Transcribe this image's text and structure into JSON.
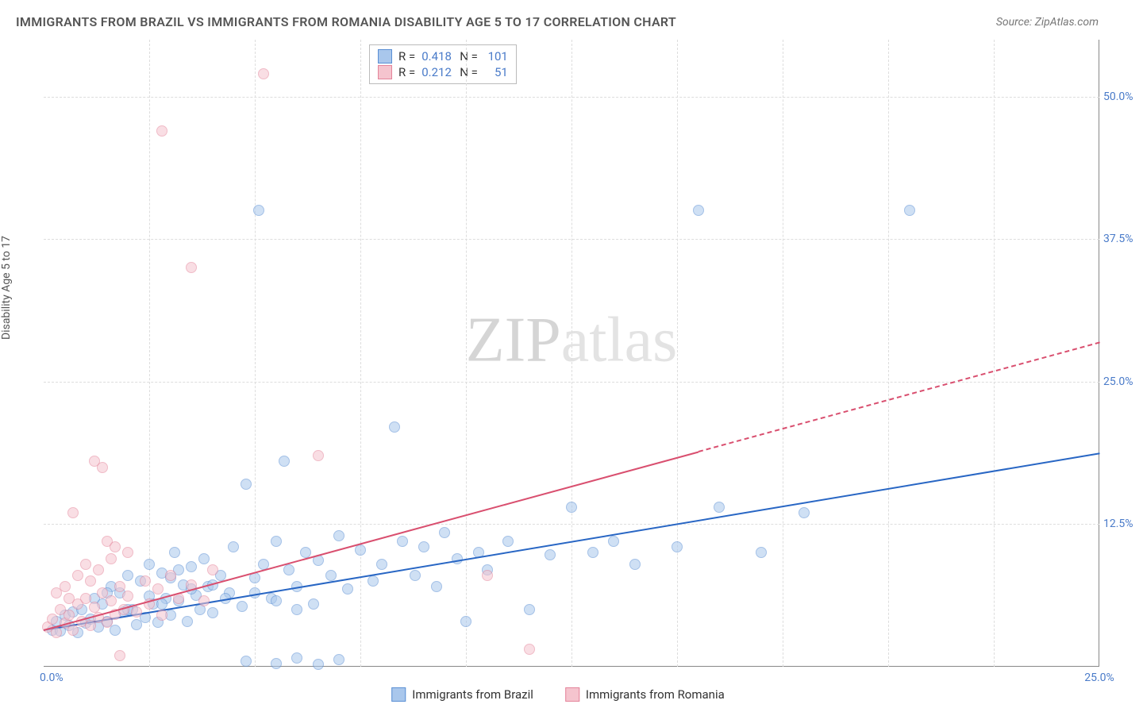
{
  "title": "IMMIGRANTS FROM BRAZIL VS IMMIGRANTS FROM ROMANIA DISABILITY AGE 5 TO 17 CORRELATION CHART",
  "source": "Source: ZipAtlas.com",
  "y_axis_label": "Disability Age 5 to 17",
  "watermark": {
    "part1": "ZIP",
    "part2": "atlas"
  },
  "chart": {
    "type": "scatter",
    "xlim": [
      0,
      25
    ],
    "ylim": [
      0,
      55
    ],
    "x_ticks": [
      {
        "v": 0,
        "l": "0.0%"
      },
      {
        "v": 25,
        "l": "25.0%"
      }
    ],
    "y_ticks": [
      {
        "v": 12.5,
        "l": "12.5%"
      },
      {
        "v": 25,
        "l": "25.0%"
      },
      {
        "v": 37.5,
        "l": "37.5%"
      },
      {
        "v": 50,
        "l": "50.0%"
      }
    ],
    "grid_color": "#dddddd",
    "axis_color": "#888888",
    "background_color": "#ffffff",
    "tick_color": "#4a7bc9",
    "series": [
      {
        "name": "Immigrants from Brazil",
        "color_fill": "#a9c7ec",
        "color_stroke": "#5a8fd4",
        "trend_color": "#2866c4",
        "r": 0.418,
        "n": 101,
        "trend": {
          "x0": 0,
          "y0": 3.3,
          "x1": 25,
          "y1": 18.8,
          "x_data_end": 25
        },
        "points": [
          [
            0.2,
            3.2
          ],
          [
            0.3,
            4.0
          ],
          [
            0.4,
            3.1
          ],
          [
            0.5,
            4.5
          ],
          [
            0.6,
            3.6
          ],
          [
            0.7,
            4.8
          ],
          [
            0.8,
            3.0
          ],
          [
            0.9,
            5.0
          ],
          [
            1.0,
            3.8
          ],
          [
            1.1,
            4.2
          ],
          [
            1.2,
            6.0
          ],
          [
            1.3,
            3.5
          ],
          [
            1.4,
            5.5
          ],
          [
            1.5,
            4.0
          ],
          [
            1.6,
            7.0
          ],
          [
            1.7,
            3.2
          ],
          [
            1.8,
            6.5
          ],
          [
            1.9,
            4.8
          ],
          [
            2.0,
            8.0
          ],
          [
            2.1,
            5.0
          ],
          [
            2.2,
            3.7
          ],
          [
            2.3,
            7.5
          ],
          [
            2.4,
            4.3
          ],
          [
            2.5,
            9.0
          ],
          [
            2.6,
            5.5
          ],
          [
            2.7,
            3.9
          ],
          [
            2.8,
            8.2
          ],
          [
            2.9,
            6.0
          ],
          [
            3.0,
            4.5
          ],
          [
            3.1,
            10.0
          ],
          [
            3.2,
            5.8
          ],
          [
            3.3,
            7.2
          ],
          [
            3.4,
            4.0
          ],
          [
            3.5,
            8.8
          ],
          [
            3.6,
            6.3
          ],
          [
            3.7,
            5.0
          ],
          [
            3.8,
            9.5
          ],
          [
            3.9,
            7.0
          ],
          [
            4.0,
            4.7
          ],
          [
            4.2,
            8.0
          ],
          [
            4.4,
            6.5
          ],
          [
            4.5,
            10.5
          ],
          [
            4.7,
            5.3
          ],
          [
            4.8,
            16.0
          ],
          [
            5.0,
            7.8
          ],
          [
            5.1,
            40.0
          ],
          [
            5.2,
            9.0
          ],
          [
            5.4,
            6.0
          ],
          [
            5.5,
            11.0
          ],
          [
            5.7,
            18.0
          ],
          [
            5.8,
            8.5
          ],
          [
            6.0,
            7.0
          ],
          [
            6.2,
            10.0
          ],
          [
            6.4,
            5.5
          ],
          [
            6.5,
            9.3
          ],
          [
            6.8,
            8.0
          ],
          [
            7.0,
            11.5
          ],
          [
            7.2,
            6.8
          ],
          [
            7.5,
            10.2
          ],
          [
            7.8,
            7.5
          ],
          [
            8.0,
            9.0
          ],
          [
            8.3,
            21.0
          ],
          [
            8.5,
            11.0
          ],
          [
            8.8,
            8.0
          ],
          [
            9.0,
            10.5
          ],
          [
            9.3,
            7.0
          ],
          [
            9.5,
            11.8
          ],
          [
            9.8,
            9.5
          ],
          [
            10.0,
            4.0
          ],
          [
            10.3,
            10.0
          ],
          [
            10.5,
            8.5
          ],
          [
            11.0,
            11.0
          ],
          [
            11.5,
            5.0
          ],
          [
            12.0,
            9.8
          ],
          [
            12.5,
            14.0
          ],
          [
            13.0,
            10.0
          ],
          [
            13.5,
            11.0
          ],
          [
            14.0,
            9.0
          ],
          [
            15.0,
            10.5
          ],
          [
            15.5,
            40.0
          ],
          [
            16.0,
            14.0
          ],
          [
            17.0,
            10.0
          ],
          [
            18.0,
            13.5
          ],
          [
            20.5,
            40.0
          ],
          [
            4.8,
            0.5
          ],
          [
            5.5,
            0.3
          ],
          [
            6.0,
            0.8
          ],
          [
            6.5,
            0.2
          ],
          [
            7.0,
            0.6
          ],
          [
            3.0,
            7.8
          ],
          [
            3.2,
            8.5
          ],
          [
            3.5,
            6.8
          ],
          [
            4.0,
            7.2
          ],
          [
            4.3,
            6.0
          ],
          [
            5.0,
            6.5
          ],
          [
            5.5,
            5.8
          ],
          [
            6.0,
            5.0
          ],
          [
            2.5,
            6.2
          ],
          [
            2.8,
            5.5
          ],
          [
            2.0,
            5.0
          ],
          [
            1.5,
            6.5
          ]
        ]
      },
      {
        "name": "Immigrants from Romania",
        "color_fill": "#f5c4ce",
        "color_stroke": "#e4849a",
        "trend_color": "#d94f6f",
        "r": 0.212,
        "n": 51,
        "trend": {
          "x0": 0,
          "y0": 3.3,
          "x1": 25,
          "y1": 28.5,
          "x_data_end": 15.5
        },
        "points": [
          [
            0.1,
            3.5
          ],
          [
            0.2,
            4.2
          ],
          [
            0.3,
            3.0
          ],
          [
            0.4,
            5.0
          ],
          [
            0.5,
            3.8
          ],
          [
            0.6,
            4.5
          ],
          [
            0.7,
            3.2
          ],
          [
            0.8,
            5.5
          ],
          [
            0.9,
            4.0
          ],
          [
            1.0,
            6.0
          ],
          [
            1.1,
            3.6
          ],
          [
            1.2,
            5.2
          ],
          [
            1.3,
            4.3
          ],
          [
            1.4,
            6.5
          ],
          [
            1.5,
            3.9
          ],
          [
            1.6,
            5.8
          ],
          [
            1.7,
            4.6
          ],
          [
            1.8,
            7.0
          ],
          [
            1.9,
            5.0
          ],
          [
            2.0,
            6.2
          ],
          [
            2.2,
            4.8
          ],
          [
            2.4,
            7.5
          ],
          [
            2.5,
            5.5
          ],
          [
            2.7,
            6.8
          ],
          [
            2.8,
            4.5
          ],
          [
            3.0,
            8.0
          ],
          [
            3.2,
            6.0
          ],
          [
            3.5,
            7.2
          ],
          [
            3.8,
            5.8
          ],
          [
            4.0,
            8.5
          ],
          [
            0.7,
            13.5
          ],
          [
            1.2,
            18.0
          ],
          [
            1.4,
            17.5
          ],
          [
            1.5,
            11.0
          ],
          [
            1.7,
            10.5
          ],
          [
            3.5,
            35.0
          ],
          [
            2.8,
            47.0
          ],
          [
            5.2,
            52.0
          ],
          [
            6.5,
            18.5
          ],
          [
            0.5,
            7.0
          ],
          [
            0.8,
            8.0
          ],
          [
            1.0,
            9.0
          ],
          [
            1.3,
            8.5
          ],
          [
            1.6,
            9.5
          ],
          [
            2.0,
            10.0
          ],
          [
            0.3,
            6.5
          ],
          [
            0.6,
            6.0
          ],
          [
            1.1,
            7.5
          ],
          [
            10.5,
            8.0
          ],
          [
            11.5,
            1.5
          ],
          [
            1.8,
            1.0
          ]
        ]
      }
    ]
  },
  "legend": {
    "r_label": "R =",
    "n_label": "N ="
  },
  "bottom_legend": [
    "Immigrants from Brazil",
    "Immigrants from Romania"
  ]
}
